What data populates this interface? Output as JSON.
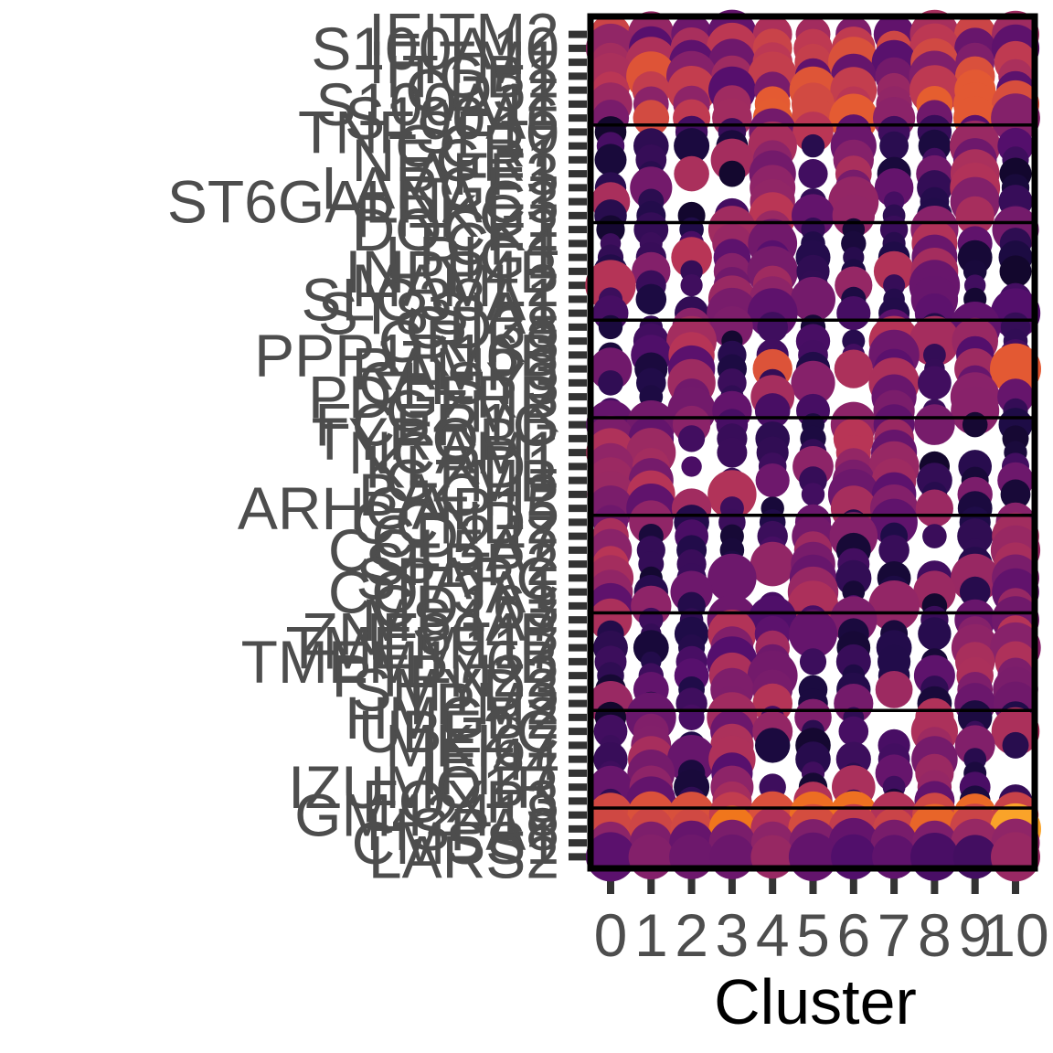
{
  "chart_data": {
    "type": "dotplot",
    "xlabel": "Cluster",
    "ylabel": "",
    "x": [
      "0",
      "1",
      "2",
      "3",
      "4",
      "5",
      "6",
      "7",
      "8",
      "9",
      "10"
    ],
    "genes": [
      "IFITM2",
      "S100A10",
      "IFITM1",
      "ITGB1",
      "CD52",
      "S100A11",
      "S100A6",
      "TNFSF10",
      "CCR7",
      "NEGR1",
      "AFF3",
      "LARGE1",
      "ST6GALNAC3",
      "PRKG1",
      "DOCK2",
      "TCF4",
      "LRIG1",
      "INPP4B",
      "MAML2",
      "SLC38A1",
      "ST8SIA1",
      "CD38",
      "GRIK3",
      "PPP1R16B",
      "RAMP3",
      "CHSY3",
      "PDGFRB",
      "GZMK",
      "FCER1G",
      "TYROBP",
      "NCAM1",
      "KLRD1",
      "GZMB",
      "BACH2",
      "ARHGAP15",
      "CCND2",
      "CD247",
      "COL5A2",
      "SFRP2",
      "SPARC",
      "COL3A1",
      "CD163",
      "MS4A7",
      "ZNF804B",
      "TMEM117",
      "TMEM176B",
      "PTPN22",
      "SMYD3",
      "TPM2",
      "HMGB2",
      "UBE2C",
      "MKI67",
      "IFI44",
      "IFI27",
      "IZUMO1R",
      "FOXP3",
      "GM42418",
      "HSPA8",
      "CMSS1",
      "LARS2"
    ],
    "gene_groups": [
      [
        "IFITM2",
        "S100A10",
        "IFITM1",
        "ITGB1",
        "CD52",
        "S100A11",
        "S100A6"
      ],
      [
        "TNFSF10",
        "CCR7",
        "NEGR1",
        "AFF3",
        "LARGE1",
        "ST6GALNAC3",
        "PRKG1"
      ],
      [
        "DOCK2",
        "TCF4",
        "LRIG1",
        "INPP4B",
        "MAML2",
        "SLC38A1",
        "ST8SIA1"
      ],
      [
        "CD38",
        "GRIK3",
        "PPP1R16B",
        "RAMP3",
        "CHSY3",
        "PDGFRB",
        "GZMK"
      ],
      [
        "FCER1G",
        "TYROBP",
        "NCAM1",
        "KLRD1",
        "GZMB",
        "BACH2",
        "ARHGAP15"
      ],
      [
        "CCND2",
        "CD247",
        "COL5A2",
        "SFRP2",
        "SPARC",
        "COL3A1",
        "CD163"
      ],
      [
        "MS4A7",
        "ZNF804B",
        "TMEM117",
        "TMEM176B",
        "PTPN22",
        "SMYD3",
        "TPM2"
      ],
      [
        "HMGB2",
        "UBE2C",
        "MKI67",
        "IFI44",
        "IFI27",
        "IZUMO1R",
        "FOXP3"
      ],
      [
        "GM42418",
        "HSPA8",
        "CMSS1",
        "LARS2"
      ]
    ],
    "group_separators_after": [
      7,
      14,
      21,
      28,
      35,
      42,
      49,
      56
    ],
    "colorscale": "inferno",
    "color_range": [
      0,
      1
    ],
    "size_range": [
      0,
      1
    ],
    "legend": "none",
    "grid": false,
    "dots": [
      [
        0.55,
        0.95,
        0.35,
        0.6,
        0.4,
        0.8,
        0.5,
        0.45,
        0.4,
        0.45,
        0.9,
        0.4,
        0.6,
        0.3,
        0.35,
        0.3,
        0.5,
        0.4,
        0.35,
        0.35,
        0.4,
        0.6
      ],
      [
        0.7,
        0.5,
        0.35,
        0.6,
        0.35,
        0.55,
        0.4,
        0.45,
        0.4,
        0.45,
        0.7,
        0.3,
        0.4,
        0.3,
        0.35,
        0.3,
        0.4,
        0.3,
        0.3,
        0.3,
        0.3,
        0.4
      ],
      [
        0.7,
        0.95,
        0.35,
        0.6,
        0.4,
        0.85,
        0.55,
        0.5,
        0.4,
        0.5,
        0.8,
        0.4,
        0.5,
        0.3,
        0.35,
        0.3,
        0.4,
        0.35,
        0.3,
        0.35,
        0.35,
        0.45
      ],
      [
        0.75,
        0.95,
        0.4,
        0.65,
        0.45,
        0.9,
        0.6,
        0.5,
        0.45,
        0.55,
        0.8,
        0.4,
        0.45,
        0.3,
        0.4,
        0.3,
        0.4,
        0.35,
        0.3,
        0.35,
        0.4,
        0.45
      ],
      [
        0.85,
        0.95,
        0.45,
        0.7,
        0.5,
        0.9,
        0.65,
        0.55,
        0.5,
        0.6,
        0.85,
        0.45,
        0.5,
        0.35,
        0.4,
        0.35,
        0.45,
        0.4,
        0.35,
        0.4,
        0.4,
        0.5
      ],
      [
        0.95,
        0.95,
        0.55,
        0.8,
        0.55,
        0.95,
        0.75,
        0.65,
        0.55,
        0.7,
        0.95,
        0.55,
        0.55,
        0.4,
        0.45,
        0.4,
        0.55,
        0.45,
        0.4,
        0.45,
        0.65,
        0.55
      ],
      [
        0.9,
        0.95,
        0.5,
        0.8,
        0.55,
        0.95,
        0.7,
        0.6,
        0.55,
        0.9,
        0.85,
        0.6,
        0.5,
        0.4,
        0.45,
        0.4,
        0.5,
        0.45,
        0.4,
        0.45,
        0.7,
        0.5
      ]
    ]
  }
}
